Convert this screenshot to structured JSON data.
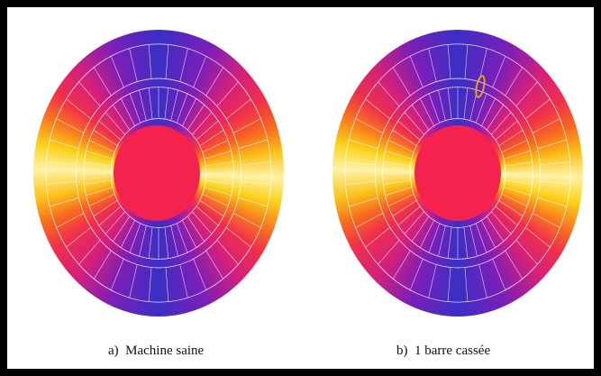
{
  "panels": [
    {
      "caption": "a)  Machine saine"
    },
    {
      "caption": "b)  1 barre cassée"
    }
  ]
}
